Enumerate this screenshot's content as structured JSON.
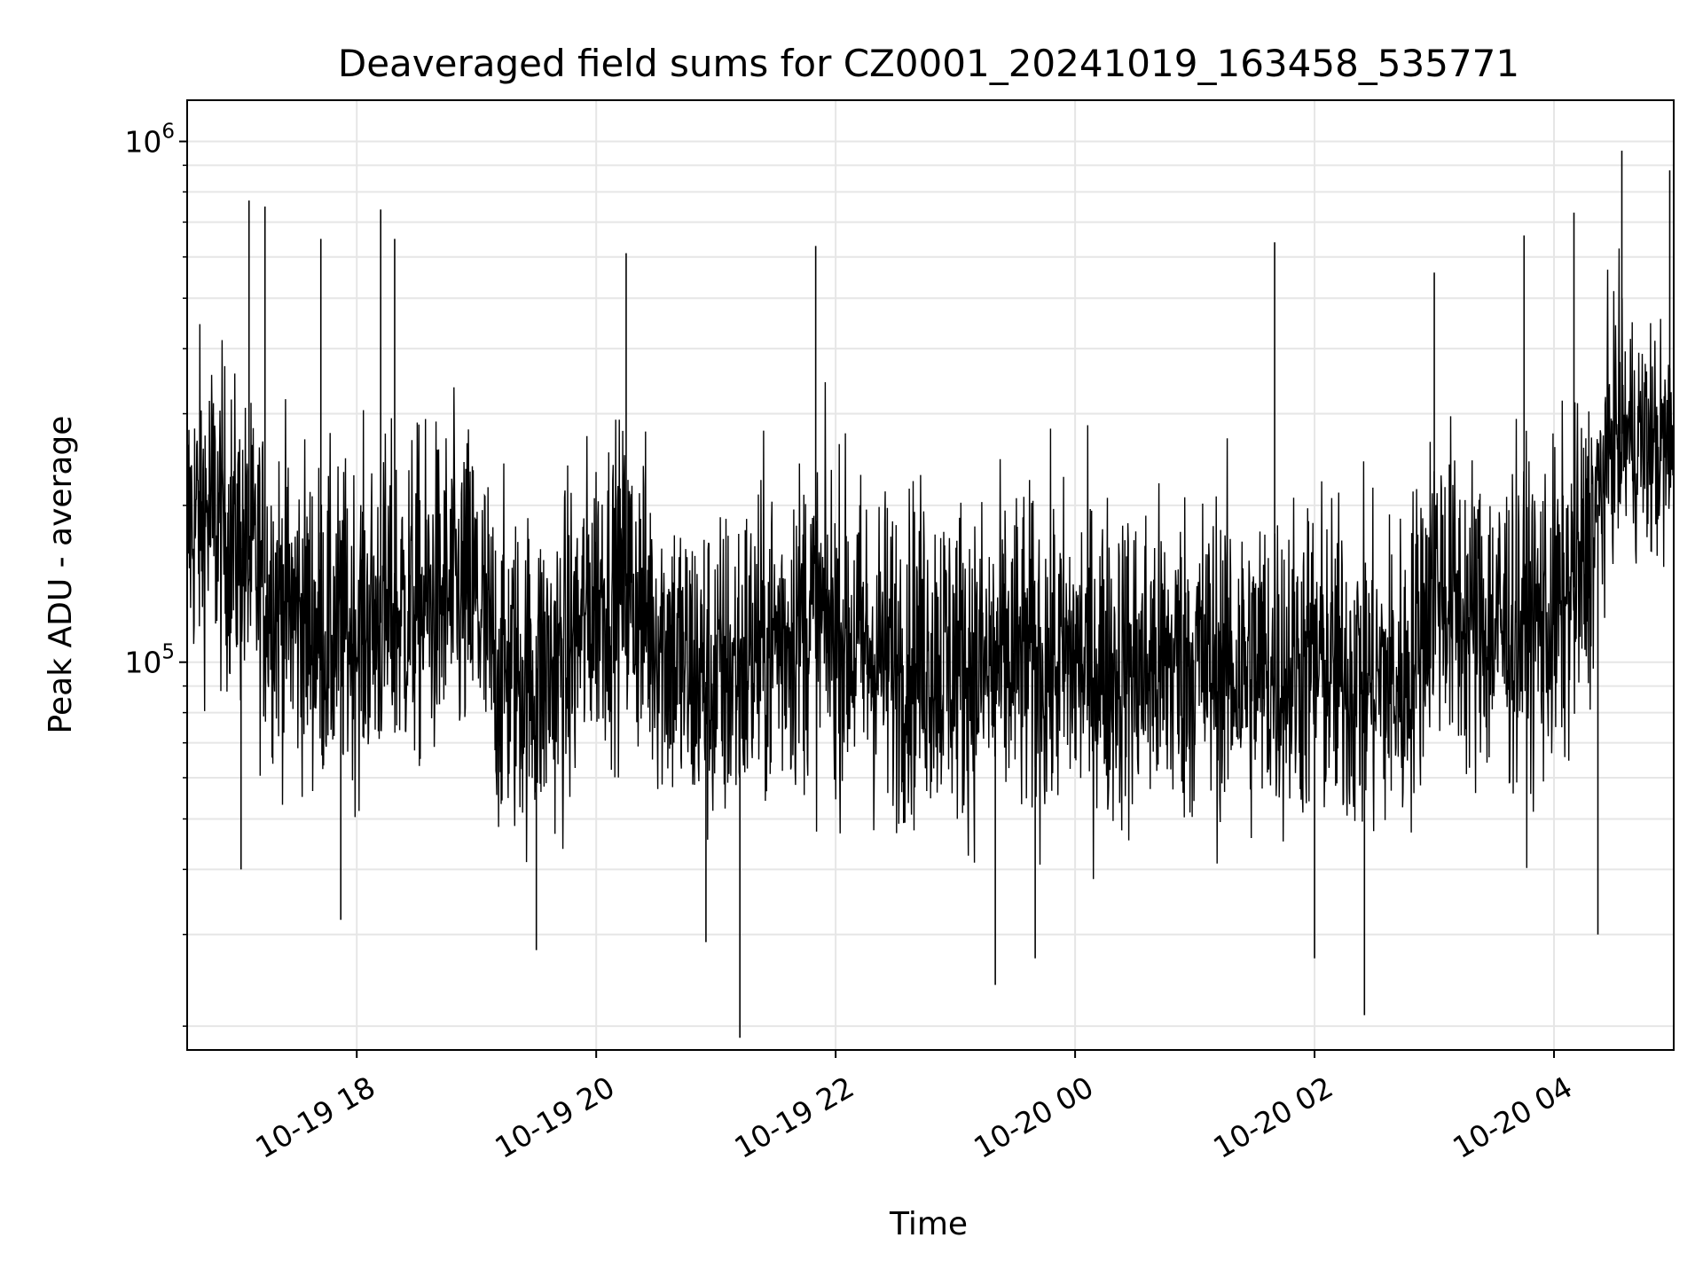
{
  "chart_data": {
    "type": "line",
    "title": "Deaveraged field sums for CZ0001_20241019_163458_535771",
    "xlabel": "Time",
    "ylabel": "Peak ADU - average",
    "yscale": "log",
    "grid": true,
    "line_color": "#000000",
    "grid_color": "#e6e6e6",
    "xlim": [
      "2024-10-19 16:35",
      "2024-10-20 05:00"
    ],
    "ylim": [
      18000,
      1200000
    ],
    "x_ticks": [
      {
        "value": "2024-10-19 18:00",
        "label": "10-19 18"
      },
      {
        "value": "2024-10-19 20:00",
        "label": "10-19 20"
      },
      {
        "value": "2024-10-19 22:00",
        "label": "10-19 22"
      },
      {
        "value": "2024-10-20 00:00",
        "label": "10-20 00"
      },
      {
        "value": "2024-10-20 02:00",
        "label": "10-20 02"
      },
      {
        "value": "2024-10-20 04:00",
        "label": "10-20 04"
      }
    ],
    "y_ticks": [
      {
        "value": 100000,
        "base": "10",
        "exp": "5"
      },
      {
        "value": 1000000,
        "base": "10",
        "exp": "6"
      }
    ],
    "series": [
      {
        "x": [
          "2024-10-19 16:35",
          "2024-10-19 16:45",
          "2024-10-19 17:00",
          "2024-10-19 17:15",
          "2024-10-19 17:30",
          "2024-10-19 17:45",
          "2024-10-19 18:00",
          "2024-10-19 18:15",
          "2024-10-19 18:30",
          "2024-10-19 18:45",
          "2024-10-19 19:00",
          "2024-10-19 19:10",
          "2024-10-19 19:30",
          "2024-10-19 19:45",
          "2024-10-19 20:00",
          "2024-10-19 20:15",
          "2024-10-19 20:30",
          "2024-10-19 20:45",
          "2024-10-19 21:00",
          "2024-10-19 21:15",
          "2024-10-19 21:30",
          "2024-10-19 21:45",
          "2024-10-19 22:00",
          "2024-10-19 22:15",
          "2024-10-19 22:30",
          "2024-10-19 22:45",
          "2024-10-19 23:00",
          "2024-10-19 23:15",
          "2024-10-19 23:30",
          "2024-10-19 23:45",
          "2024-10-20 00:00",
          "2024-10-20 00:15",
          "2024-10-20 00:30",
          "2024-10-20 00:45",
          "2024-10-20 01:00",
          "2024-10-20 01:15",
          "2024-10-20 01:30",
          "2024-10-20 01:45",
          "2024-10-20 02:00",
          "2024-10-20 02:15",
          "2024-10-20 02:30",
          "2024-10-20 02:45",
          "2024-10-20 03:00",
          "2024-10-20 03:15",
          "2024-10-20 03:30",
          "2024-10-20 03:45",
          "2024-10-20 04:00",
          "2024-10-20 04:15",
          "2024-10-20 04:30",
          "2024-10-20 04:45",
          "2024-10-20 05:00"
        ],
        "y_median": [
          180000,
          190000,
          170000,
          140000,
          120000,
          110000,
          115000,
          120000,
          125000,
          130000,
          130000,
          95000,
          92000,
          100000,
          135000,
          140000,
          115000,
          95000,
          90000,
          100000,
          110000,
          120000,
          115000,
          105000,
          100000,
          105000,
          100000,
          95000,
          100000,
          98000,
          100000,
          98000,
          97000,
          98000,
          100000,
          98000,
          96000,
          97000,
          100000,
          94000,
          92000,
          90000,
          150000,
          120000,
          115000,
          118000,
          120000,
          150000,
          280000,
          260000,
          250000
        ],
        "y_high": [
          360000,
          420000,
          330000,
          280000,
          260000,
          230000,
          240000,
          260000,
          270000,
          280000,
          280000,
          200000,
          190000,
          210000,
          270000,
          280000,
          240000,
          200000,
          190000,
          210000,
          230000,
          250000,
          240000,
          220000,
          210000,
          220000,
          210000,
          200000,
          210000,
          205000,
          210000,
          205000,
          200000,
          205000,
          210000,
          205000,
          200000,
          202000,
          210000,
          195000,
          190000,
          185000,
          300000,
          250000,
          240000,
          245000,
          250000,
          310000,
          480000,
          450000,
          430000
        ],
        "y_low": [
          95000,
          100000,
          85000,
          70000,
          62000,
          58000,
          60000,
          62000,
          64000,
          66000,
          66000,
          48000,
          46000,
          50000,
          70000,
          72000,
          58000,
          48000,
          45000,
          50000,
          55000,
          60000,
          58000,
          52000,
          50000,
          52000,
          50000,
          48000,
          50000,
          49000,
          50000,
          49000,
          48000,
          49000,
          50000,
          49000,
          48000,
          48500,
          50000,
          47000,
          46000,
          45000,
          75000,
          60000,
          57000,
          58000,
          60000,
          75000,
          170000,
          160000,
          150000
        ],
        "spikes": [
          {
            "x": "2024-10-19 17:06",
            "y": 770000
          },
          {
            "x": "2024-10-19 17:14",
            "y": 750000
          },
          {
            "x": "2024-10-19 17:02",
            "y": 40000
          },
          {
            "x": "2024-10-19 17:42",
            "y": 650000
          },
          {
            "x": "2024-10-19 17:52",
            "y": 32000
          },
          {
            "x": "2024-10-19 18:12",
            "y": 740000
          },
          {
            "x": "2024-10-19 18:19",
            "y": 650000
          },
          {
            "x": "2024-10-19 19:30",
            "y": 28000
          },
          {
            "x": "2024-10-19 20:15",
            "y": 610000
          },
          {
            "x": "2024-10-19 20:55",
            "y": 29000
          },
          {
            "x": "2024-10-19 21:12",
            "y": 19000
          },
          {
            "x": "2024-10-19 21:50",
            "y": 630000
          },
          {
            "x": "2024-10-19 23:20",
            "y": 24000
          },
          {
            "x": "2024-10-19 23:40",
            "y": 27000
          },
          {
            "x": "2024-10-20 01:40",
            "y": 640000
          },
          {
            "x": "2024-10-20 02:00",
            "y": 27000
          },
          {
            "x": "2024-10-20 02:25",
            "y": 21000
          },
          {
            "x": "2024-10-20 03:00",
            "y": 560000
          },
          {
            "x": "2024-10-20 03:45",
            "y": 660000
          },
          {
            "x": "2024-10-20 04:10",
            "y": 730000
          },
          {
            "x": "2024-10-20 04:22",
            "y": 30000
          },
          {
            "x": "2024-10-20 04:34",
            "y": 960000
          },
          {
            "x": "2024-10-20 04:58",
            "y": 880000
          }
        ]
      }
    ]
  }
}
